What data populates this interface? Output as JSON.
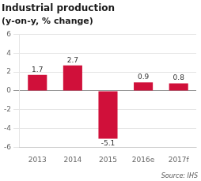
{
  "chart_data": {
    "type": "bar",
    "title": "Industrial production",
    "subtitle": "(y-on-y, % change)",
    "categories": [
      "2013",
      "2014",
      "2015",
      "2016e",
      "2017f"
    ],
    "values": [
      1.7,
      2.7,
      -5.1,
      0.9,
      0.8
    ],
    "color": "#d0103a",
    "ylim": [
      -6,
      6
    ],
    "yticks": [
      -6,
      -4,
      -2,
      0,
      2,
      4,
      6
    ],
    "grid": true,
    "data_labels": true,
    "annotations": [
      "Source: IHS"
    ]
  }
}
